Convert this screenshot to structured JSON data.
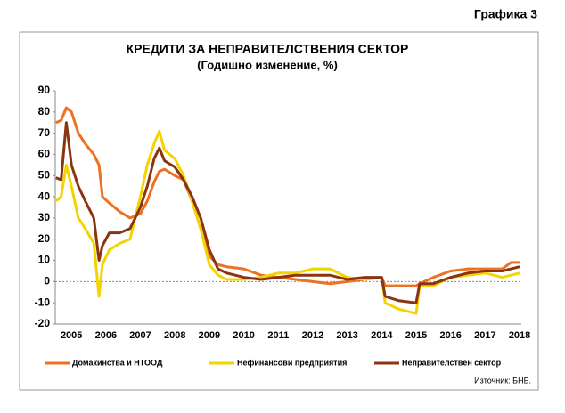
{
  "label": "Графика 3",
  "chart_data": {
    "type": "line",
    "title": "КРЕДИТИ ЗА НЕПРАВИТЕЛСТВЕНИЯ СЕКТОР",
    "subtitle": "(Годишно изменение, %)",
    "x": [
      2004.55,
      2004.7,
      2004.85,
      2005,
      2005.2,
      2005.4,
      2005.65,
      2005.8,
      2005.9,
      2006.1,
      2006.4,
      2006.7,
      2007,
      2007.2,
      2007.4,
      2007.55,
      2007.7,
      2008,
      2008.25,
      2008.5,
      2008.75,
      2009,
      2009.25,
      2009.5,
      2010,
      2010.5,
      2011,
      2011.5,
      2012,
      2012.5,
      2013,
      2013.5,
      2014,
      2014.1,
      2014.5,
      2015,
      2015.1,
      2015.5,
      2016,
      2016.5,
      2017,
      2017.5,
      2017.75,
      2018
    ],
    "series": [
      {
        "name": "Домакинства и НТООД",
        "color": "#ee7122",
        "values": [
          75,
          76,
          82,
          80,
          70,
          65,
          60,
          55,
          40,
          37,
          33,
          30,
          32,
          38,
          47,
          52,
          53,
          50,
          48,
          38,
          25,
          12,
          8,
          7,
          6,
          3,
          2,
          1,
          0,
          -1,
          0,
          1,
          2,
          -2,
          -2,
          -2,
          -1,
          2,
          5,
          6,
          6,
          6,
          9,
          9
        ]
      },
      {
        "name": "Нефинансови предприятия",
        "color": "#f5d300",
        "values": [
          38,
          40,
          55,
          45,
          30,
          25,
          18,
          -7,
          8,
          15,
          18,
          20,
          40,
          55,
          65,
          71,
          62,
          58,
          50,
          38,
          25,
          8,
          3,
          1,
          1,
          2,
          4,
          4,
          6,
          6,
          2,
          1,
          2,
          -10,
          -13,
          -15,
          -2,
          -2,
          2,
          3,
          4,
          2,
          3,
          4
        ]
      },
      {
        "name": "Неправителствен сектор",
        "color": "#8b3510",
        "values": [
          49,
          48,
          75,
          55,
          45,
          38,
          30,
          10,
          17,
          23,
          23,
          25,
          35,
          45,
          58,
          63,
          57,
          54,
          48,
          40,
          30,
          15,
          6,
          4,
          2,
          1,
          2,
          3,
          3,
          3,
          1,
          2,
          2,
          -7,
          -9,
          -10,
          -1,
          -1,
          2,
          4,
          5,
          5,
          6,
          7
        ]
      }
    ],
    "xlim": [
      2004.53,
      2018.05
    ],
    "xticks": [
      2005,
      2006,
      2007,
      2008,
      2009,
      2010,
      2011,
      2012,
      2013,
      2014,
      2015,
      2016,
      2017,
      2018
    ],
    "ylim": [
      -20,
      90
    ],
    "yticks": [
      -20,
      -10,
      0,
      10,
      20,
      30,
      40,
      50,
      60,
      70,
      80,
      90
    ],
    "legend": "bottom",
    "source": "Източник: БНБ."
  }
}
